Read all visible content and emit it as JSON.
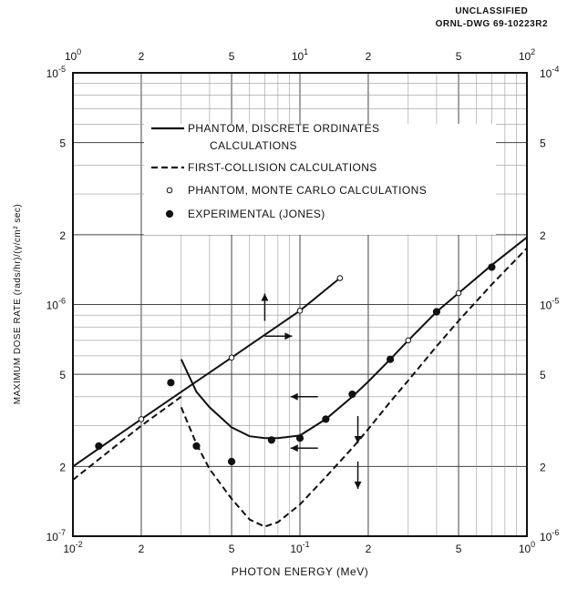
{
  "header": {
    "classification": "UNCLASSIFIED",
    "drawing_number": "ORNL-DWG 69-10223R2"
  },
  "chart_data": {
    "type": "line",
    "xlabel": "PHOTON ENERGY (MeV)",
    "ylabel": "MAXIMUM DOSE RATE (rads/hr)/(γ/cm² sec)",
    "x_scale": "log",
    "y_scale": "log",
    "grid": true,
    "bottom_axis": {
      "xlim": [
        0.01,
        1.0
      ],
      "tick_labels": [
        {
          "value": 0.01,
          "base": "10",
          "exp": "-2"
        },
        {
          "value": 0.02,
          "text": "2"
        },
        {
          "value": 0.05,
          "text": "5"
        },
        {
          "value": 0.1,
          "base": "10",
          "exp": "-1"
        },
        {
          "value": 0.2,
          "text": "2"
        },
        {
          "value": 0.5,
          "text": "5"
        },
        {
          "value": 1.0,
          "base": "10",
          "exp": "0"
        }
      ]
    },
    "top_axis": {
      "xlim": [
        1,
        100
      ],
      "tick_labels": [
        {
          "value": 1,
          "base": "10",
          "exp": "0"
        },
        {
          "value": 2,
          "text": "2"
        },
        {
          "value": 5,
          "text": "5"
        },
        {
          "value": 10,
          "base": "10",
          "exp": "1"
        },
        {
          "value": 20,
          "text": "2"
        },
        {
          "value": 50,
          "text": "5"
        },
        {
          "value": 100,
          "base": "10",
          "exp": "2"
        }
      ]
    },
    "left_axis": {
      "ylim": [
        1e-07,
        1e-05
      ],
      "tick_labels": [
        {
          "value": 1e-07,
          "base": "10",
          "exp": "-7"
        },
        {
          "value": 2e-07,
          "text": "2"
        },
        {
          "value": 5e-07,
          "text": "5"
        },
        {
          "value": 1e-06,
          "base": "10",
          "exp": "-6"
        },
        {
          "value": 2e-06,
          "text": "2"
        },
        {
          "value": 5e-06,
          "text": "5"
        },
        {
          "value": 1e-05,
          "base": "10",
          "exp": "-5"
        }
      ]
    },
    "right_axis": {
      "ylim": [
        1e-06,
        0.0001
      ],
      "tick_labels": [
        {
          "value": 1e-06,
          "base": "10",
          "exp": "-6"
        },
        {
          "value": 2e-06,
          "text": "2"
        },
        {
          "value": 5e-06,
          "text": "5"
        },
        {
          "value": 1e-05,
          "base": "10",
          "exp": "-5"
        },
        {
          "value": 2e-05,
          "text": "2"
        },
        {
          "value": 5e-05,
          "text": "5"
        },
        {
          "value": 0.0001,
          "base": "10",
          "exp": "-4"
        }
      ]
    },
    "legend": {
      "placement": "top-center",
      "entries": [
        {
          "style": "solid",
          "lines": [
            "PHANTOM, DISCRETE ORDINATES",
            "CALCULATIONS"
          ]
        },
        {
          "style": "dashed",
          "lines": [
            "FIRST-COLLISION CALCULATIONS"
          ]
        },
        {
          "style": "open-circle",
          "lines": [
            "PHANTOM, MONTE CARLO CALCULATIONS"
          ]
        },
        {
          "style": "filled-circle",
          "lines": [
            "EXPERIMENTAL (JONES)"
          ]
        }
      ]
    },
    "series": [
      {
        "style": "solid",
        "axes": "bottom-left",
        "x": [
          0.01,
          0.02,
          0.03,
          0.05,
          0.07,
          0.1,
          0.15
        ],
        "y": [
          2e-07,
          3.2e-07,
          4.2e-07,
          5.9e-07,
          7.4e-07,
          9.4e-07,
          1.3e-06
        ]
      },
      {
        "style": "dashed",
        "axes": "bottom-left",
        "x": [
          0.01,
          0.02,
          0.03
        ],
        "y": [
          1.75e-07,
          3e-07,
          4e-07
        ]
      },
      {
        "style": "solid",
        "axes": "top-right",
        "x": [
          3.0,
          3.5,
          4.0,
          5.0,
          6.0,
          7.0,
          8.0,
          10,
          13,
          17,
          20,
          25,
          30,
          40,
          50,
          70,
          100
        ],
        "y": [
          5.8e-06,
          4.2e-06,
          3.6e-06,
          2.95e-06,
          2.7e-06,
          2.65e-06,
          2.65e-06,
          2.72e-06,
          3.2e-06,
          4e-06,
          4.65e-06,
          5.8e-06,
          7e-06,
          9.3e-06,
          1.12e-05,
          1.48e-05,
          1.95e-05
        ]
      },
      {
        "style": "dashed",
        "axes": "top-right",
        "x": [
          3.0,
          3.5,
          4.0,
          5.0,
          6.0,
          7.0,
          8.0,
          10,
          13,
          17,
          20,
          25,
          30,
          40,
          50,
          70,
          100
        ],
        "y": [
          3.6e-06,
          2.5e-06,
          1.95e-06,
          1.45e-06,
          1.18e-06,
          1.1e-06,
          1.15e-06,
          1.37e-06,
          1.8e-06,
          2.4e-06,
          2.9e-06,
          3.8e-06,
          4.7e-06,
          6.6e-06,
          8.5e-06,
          1.22e-05,
          1.75e-05
        ]
      },
      {
        "style": "open-circle",
        "axes": "bottom-left",
        "x": [
          0.02,
          0.05,
          0.1,
          0.15
        ],
        "y": [
          3.2e-07,
          5.9e-07,
          9.4e-07,
          1.3e-06
        ]
      },
      {
        "style": "open-circle",
        "axes": "top-right",
        "x": [
          30,
          50
        ],
        "y": [
          7e-06,
          1.12e-05
        ]
      },
      {
        "style": "filled-circle",
        "axes": "bottom-left",
        "x": [
          0.013,
          0.027
        ],
        "y": [
          2.45e-07,
          4.6e-07
        ]
      },
      {
        "style": "filled-circle",
        "axes": "top-right",
        "x": [
          3.5,
          5.0,
          7.5,
          10,
          13,
          17,
          25,
          40,
          70
        ],
        "y": [
          2.45e-06,
          2.1e-06,
          2.6e-06,
          2.65e-06,
          3.2e-06,
          4.1e-06,
          5.8e-06,
          9.3e-06,
          1.45e-05
        ]
      }
    ],
    "annotations": [
      {
        "type": "arrow",
        "dir": "up",
        "x": 0.07,
        "y": 8.5e-07,
        "axes": "bottom-left"
      },
      {
        "type": "arrow",
        "dir": "right",
        "x": 0.07,
        "y": 7.3e-07,
        "axes": "bottom-left"
      },
      {
        "type": "arrow",
        "dir": "left",
        "x": 0.12,
        "y": 4e-07,
        "axes": "bottom-left"
      },
      {
        "type": "arrow",
        "dir": "down",
        "x": 0.18,
        "y": 3.3e-07,
        "axes": "bottom-left"
      },
      {
        "type": "arrow",
        "dir": "left",
        "x": 0.12,
        "y": 2.4e-07,
        "axes": "bottom-left"
      },
      {
        "type": "arrow",
        "dir": "down",
        "x": 0.18,
        "y": 2.1e-07,
        "axes": "bottom-left"
      }
    ]
  }
}
